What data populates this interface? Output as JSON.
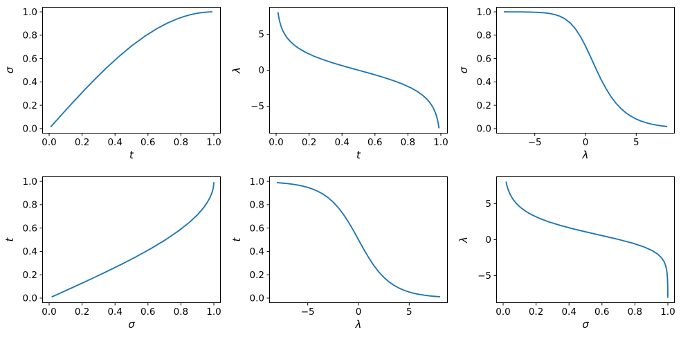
{
  "figure": {
    "background": "#ffffff",
    "line_color": "#1f77b4",
    "line_width": 1.9,
    "axes_color": "#000000",
    "text_color": "#000000",
    "rows": 2,
    "cols": 3
  },
  "variables": {
    "t": [
      0.0117,
      0.015,
      0.0192,
      0.0247,
      0.0317,
      0.0406,
      0.0521,
      0.0668,
      0.0856,
      0.1095,
      0.1397,
      0.1776,
      0.2244,
      0.2809,
      0.347,
      0.4212,
      0.5,
      0.5789,
      0.6529,
      0.719,
      0.7756,
      0.8224,
      0.8601,
      0.8904,
      0.9143,
      0.9331,
      0.9478,
      0.9593,
      0.9683,
      0.9753,
      0.9808,
      0.985,
      0.9883
    ],
    "sigma": [
      0.0183,
      0.0235,
      0.0302,
      0.0387,
      0.0497,
      0.0638,
      0.0818,
      0.1048,
      0.1341,
      0.1712,
      0.2178,
      0.2754,
      0.3453,
      0.4271,
      0.5186,
      0.6144,
      0.7071,
      0.789,
      0.855,
      0.9042,
      0.9385,
      0.9613,
      0.976,
      0.9852,
      0.991,
      0.9945,
      0.9966,
      0.998,
      0.9988,
      0.9993,
      0.9995,
      0.9997,
      0.9998
    ],
    "lambda": [
      8.0,
      7.5,
      7.0,
      6.5,
      6.0,
      5.5,
      5.0,
      4.5,
      4.0,
      3.5,
      3.0,
      2.5,
      2.0,
      1.5,
      1.0,
      0.5,
      0.0,
      -0.5,
      -1.0,
      -1.5,
      -2.0,
      -2.5,
      -3.0,
      -3.5,
      -4.0,
      -4.5,
      -5.0,
      -5.5,
      -6.0,
      -6.5,
      -7.0,
      -7.5,
      -8.0
    ]
  },
  "chart_data": [
    {
      "id": "sigma-vs-t",
      "type": "line",
      "position": {
        "row": 0,
        "col": 0
      },
      "x_var": "t",
      "y_var": "sigma",
      "xlabel": "t",
      "ylabel": "σ",
      "xlim": [
        -0.042,
        1.042
      ],
      "ylim": [
        -0.042,
        1.042
      ],
      "xtick_values": [
        0.0,
        0.2,
        0.4,
        0.6,
        0.8,
        1.0
      ],
      "xtick_labels": [
        "0.0",
        "0.2",
        "0.4",
        "0.6",
        "0.8",
        "1.0"
      ],
      "ytick_values": [
        0.0,
        0.2,
        0.4,
        0.6,
        0.8,
        1.0
      ],
      "ytick_labels": [
        "0.0",
        "0.2",
        "0.4",
        "0.6",
        "0.8",
        "1.0"
      ],
      "grid": false,
      "legend": null
    },
    {
      "id": "lambda-vs-t",
      "type": "line",
      "position": {
        "row": 0,
        "col": 1
      },
      "x_var": "t",
      "y_var": "lambda",
      "xlabel": "t",
      "ylabel": "λ",
      "xlim": [
        -0.042,
        1.042
      ],
      "ylim": [
        -8.8,
        8.8
      ],
      "xtick_values": [
        0.0,
        0.2,
        0.4,
        0.6,
        0.8,
        1.0
      ],
      "xtick_labels": [
        "0.0",
        "0.2",
        "0.4",
        "0.6",
        "0.8",
        "1.0"
      ],
      "ytick_values": [
        -5,
        0,
        5
      ],
      "ytick_labels": [
        "−5",
        "0",
        "5"
      ],
      "grid": false,
      "legend": null
    },
    {
      "id": "sigma-vs-lambda",
      "type": "line",
      "position": {
        "row": 0,
        "col": 2
      },
      "x_var": "lambda",
      "y_var": "sigma",
      "xlabel": "λ",
      "ylabel": "σ",
      "xlim": [
        -8.8,
        8.8
      ],
      "ylim": [
        -0.042,
        1.042
      ],
      "xtick_values": [
        -5,
        0,
        5
      ],
      "xtick_labels": [
        "−5",
        "0",
        "5"
      ],
      "ytick_values": [
        0.0,
        0.2,
        0.4,
        0.6,
        0.8,
        1.0
      ],
      "ytick_labels": [
        "0.0",
        "0.2",
        "0.4",
        "0.6",
        "0.8",
        "1.0"
      ],
      "grid": false,
      "legend": null
    },
    {
      "id": "t-vs-sigma",
      "type": "line",
      "position": {
        "row": 1,
        "col": 0
      },
      "x_var": "sigma",
      "y_var": "t",
      "xlabel": "σ",
      "ylabel": "t",
      "xlim": [
        -0.042,
        1.042
      ],
      "ylim": [
        -0.042,
        1.042
      ],
      "xtick_values": [
        0.0,
        0.2,
        0.4,
        0.6,
        0.8,
        1.0
      ],
      "xtick_labels": [
        "0.0",
        "0.2",
        "0.4",
        "0.6",
        "0.8",
        "1.0"
      ],
      "ytick_values": [
        0.0,
        0.2,
        0.4,
        0.6,
        0.8,
        1.0
      ],
      "ytick_labels": [
        "0.0",
        "0.2",
        "0.4",
        "0.6",
        "0.8",
        "1.0"
      ],
      "grid": false,
      "legend": null
    },
    {
      "id": "t-vs-lambda",
      "type": "line",
      "position": {
        "row": 1,
        "col": 1
      },
      "x_var": "lambda",
      "y_var": "t",
      "xlabel": "λ",
      "ylabel": "t",
      "xlim": [
        -8.8,
        8.8
      ],
      "ylim": [
        -0.042,
        1.042
      ],
      "xtick_values": [
        -5,
        0,
        5
      ],
      "xtick_labels": [
        "−5",
        "0",
        "5"
      ],
      "ytick_values": [
        0.0,
        0.2,
        0.4,
        0.6,
        0.8,
        1.0
      ],
      "ytick_labels": [
        "0.0",
        "0.2",
        "0.4",
        "0.6",
        "0.8",
        "1.0"
      ],
      "grid": false,
      "legend": null
    },
    {
      "id": "lambda-vs-sigma",
      "type": "line",
      "position": {
        "row": 1,
        "col": 2
      },
      "x_var": "sigma",
      "y_var": "lambda",
      "xlabel": "σ",
      "ylabel": "λ",
      "xlim": [
        -0.042,
        1.042
      ],
      "ylim": [
        -8.8,
        8.8
      ],
      "xtick_values": [
        0.0,
        0.2,
        0.4,
        0.6,
        0.8,
        1.0
      ],
      "xtick_labels": [
        "0.0",
        "0.2",
        "0.4",
        "0.6",
        "0.8",
        "1.0"
      ],
      "ytick_values": [
        -5,
        0,
        5
      ],
      "ytick_labels": [
        "−5",
        "0",
        "5"
      ],
      "grid": false,
      "legend": null
    }
  ]
}
